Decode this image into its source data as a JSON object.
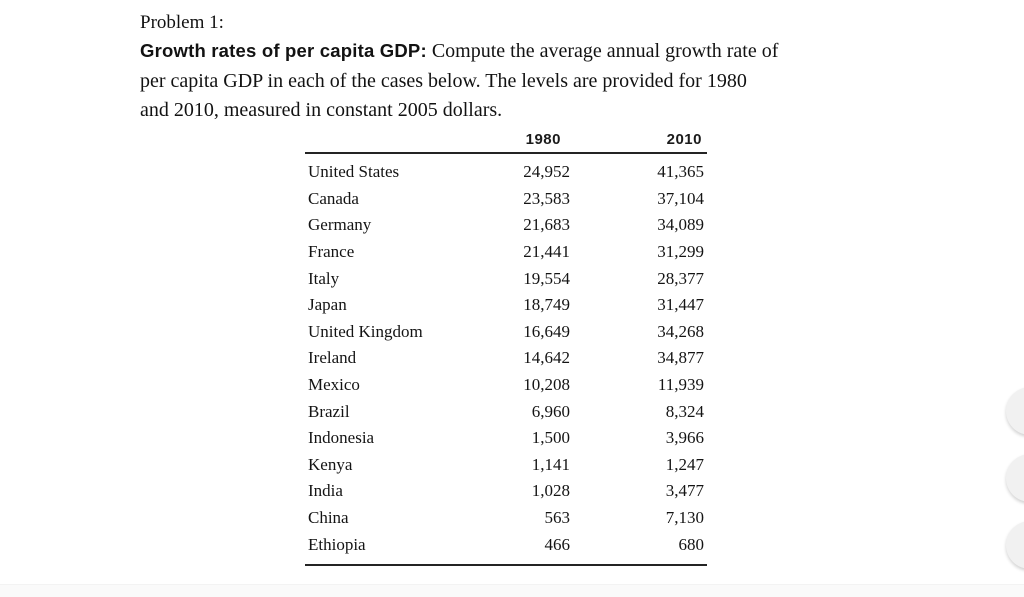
{
  "document": {
    "problem_label": "Problem 1:",
    "statement_line1_bold": "Growth rates of per capita GDP:",
    "statement_line1_rest": " Compute the average annual growth rate of",
    "statement_line2": "per capita GDP in each of the cases below. The levels are provided for 1980",
    "statement_line3": "and 2010, measured in constant 2005 dollars."
  },
  "chart_data": {
    "type": "table",
    "columns": [
      "1980",
      "2010"
    ],
    "rows": [
      {
        "country": "United States",
        "y1980": "24,952",
        "y2010": "41,365"
      },
      {
        "country": "Canada",
        "y1980": "23,583",
        "y2010": "37,104"
      },
      {
        "country": "Germany",
        "y1980": "21,683",
        "y2010": "34,089"
      },
      {
        "country": "France",
        "y1980": "21,441",
        "y2010": "31,299"
      },
      {
        "country": "Italy",
        "y1980": "19,554",
        "y2010": "28,377"
      },
      {
        "country": "Japan",
        "y1980": "18,749",
        "y2010": "31,447"
      },
      {
        "country": "United Kingdom",
        "y1980": "16,649",
        "y2010": "34,268"
      },
      {
        "country": "Ireland",
        "y1980": "14,642",
        "y2010": "34,877"
      },
      {
        "country": "Mexico",
        "y1980": "10,208",
        "y2010": "11,939"
      },
      {
        "country": "Brazil",
        "y1980": "6,960",
        "y2010": "8,324"
      },
      {
        "country": "Indonesia",
        "y1980": "1,500",
        "y2010": "3,966"
      },
      {
        "country": "Kenya",
        "y1980": "1,141",
        "y2010": "1,247"
      },
      {
        "country": "India",
        "y1980": "1,028",
        "y2010": "3,477"
      },
      {
        "country": "China",
        "y1980": "563",
        "y2010": "7,130"
      },
      {
        "country": "Ethiopia",
        "y1980": "466",
        "y2010": "680"
      }
    ]
  },
  "floating_buttons_count": 3,
  "colors": {
    "background": "#ffffff",
    "text": "#141414",
    "table_rule": "#242424",
    "floating_button": "#f1f1f1",
    "bottom_strip": "#fafafa"
  }
}
